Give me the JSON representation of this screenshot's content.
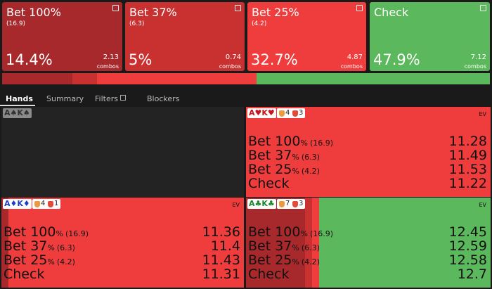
{
  "actions": [
    {
      "name": "Bet 100%",
      "size": "(16.9)",
      "frequency": {
        "value": 14.4,
        "label": "14.4%"
      },
      "combos": 2.13,
      "combos_label": "combos",
      "color": "#a8292c"
    },
    {
      "name": "Bet 37%",
      "size": "(6.3)",
      "frequency": {
        "value": 5,
        "label": "5%"
      },
      "combos": 0.74,
      "combos_label": "combos",
      "color": "#c93131"
    },
    {
      "name": "Bet 25%",
      "size": "(4.2)",
      "frequency": {
        "value": 32.7,
        "label": "32.7%"
      },
      "combos": 4.87,
      "combos_label": "combos",
      "color": "#ef3d3d"
    },
    {
      "name": "Check",
      "frequency": {
        "value": 47.9,
        "label": "47.9%"
      },
      "combos": 7.12,
      "combos_label": "combos",
      "color": "#5cb85c"
    }
  ],
  "tabs": [
    "Hands",
    "Summary",
    "Filters",
    "Blockers"
  ],
  "hands": [
    {
      "hand": "A♠K♠",
      "hand_color": "#333333"
    },
    {
      "hand": "A♥K♥",
      "hand_color": "#c8141c",
      "blockers": [
        4,
        3
      ],
      "ev_label": "EV",
      "strategy": [
        0,
        0,
        100,
        0
      ],
      "rows": [
        {
          "action": "Bet 100",
          "unit": "%",
          "size": "(16.9)",
          "ev": 11.28
        },
        {
          "action": "Bet 37",
          "unit": "%",
          "size": "(6.3)",
          "ev": 11.49
        },
        {
          "action": "Bet 25",
          "unit": "%",
          "size": "(4.2)",
          "ev": 11.53
        },
        {
          "action": "Check",
          "ev": 11.22
        }
      ]
    },
    {
      "hand": "A♦K♦",
      "hand_color": "#1c3fc8",
      "blockers": [
        4,
        1
      ],
      "ev_label": "EV",
      "strategy": [
        3,
        0,
        97,
        0
      ],
      "rows": [
        {
          "action": "Bet 100",
          "unit": "%",
          "size": "(16.9)",
          "ev": 11.36
        },
        {
          "action": "Bet 37",
          "unit": "%",
          "size": "(6.3)",
          "ev": 11.4
        },
        {
          "action": "Bet 25",
          "unit": "%",
          "size": "(4.2)",
          "ev": 11.43
        },
        {
          "action": "Check",
          "ev": 11.31
        }
      ]
    },
    {
      "hand": "A♣K♣",
      "hand_color": "#1a8a2a",
      "blockers": [
        7,
        3
      ],
      "ev_label": "EV",
      "strategy": [
        24,
        3,
        3,
        70
      ],
      "rows": [
        {
          "action": "Bet 100",
          "unit": "%",
          "size": "(16.9)",
          "ev": 12.45
        },
        {
          "action": "Bet 37",
          "unit": "%",
          "size": "(6.3)",
          "ev": 12.59
        },
        {
          "action": "Bet 25",
          "unit": "%",
          "size": "(4.2)",
          "ev": 12.58
        },
        {
          "action": "Check",
          "ev": 12.7
        }
      ]
    }
  ]
}
